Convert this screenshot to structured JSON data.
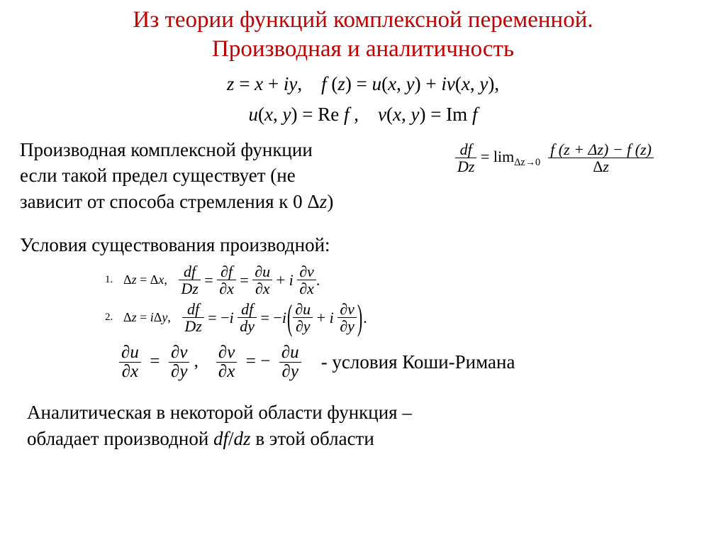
{
  "colors": {
    "title": "#c00000",
    "text": "#000000",
    "background": "#ffffff"
  },
  "fonts": {
    "body_family": "Times New Roman",
    "title_size_pt": 25,
    "body_size_pt": 20,
    "math_small_pt": 16
  },
  "title": {
    "line1": "Из теории функций комплексной переменной.",
    "line2": "Производная и аналитичность"
  },
  "defs": {
    "line1": "z = x + iy,  f (z) = u(x, y) + iv(x, y),",
    "line2": "u(x, y) = Re f ,  v(x, y) = Im f"
  },
  "deriv_para": {
    "l1": "Производная комплексной функции",
    "l2": "если такой предел существует (не",
    "l3": "зависит от способа стремления к 0 Δz)"
  },
  "limit": {
    "lhs_num": "df",
    "lhs_den": "Dz",
    "eq": " = lim",
    "sub": "Δz→0",
    "rhs_num": "f (z + Δz) − f (z)",
    "rhs_den": "Δz"
  },
  "cond_header": "Условия существования производной:",
  "cond1": {
    "num": "1.",
    "dz": "Δz = Δx,",
    "t1_num": "df",
    "t1_den": "Dz",
    "t2_num": "∂f",
    "t2_den": "∂x",
    "t3_num": "∂u",
    "t3_den": "∂x",
    "t4_num": "∂v",
    "t4_den": "∂x",
    "tail": "."
  },
  "cond2": {
    "num": "2.",
    "dz": "Δz = iΔy,",
    "t1_num": "df",
    "t1_den": "Dz",
    "mid": " = −i ",
    "t2_num": "df",
    "t2_den": "dy",
    "eq2": " = −i",
    "p1_num": "∂u",
    "p1_den": "∂y",
    "plus": " + i ",
    "p2_num": "∂v",
    "p2_den": "∂y",
    "tail": "."
  },
  "cr": {
    "a_num": "∂u",
    "a_den": "∂x",
    "b_num": "∂v",
    "b_den": "∂y",
    "c_num": "∂v",
    "c_den": "∂x",
    "d_num": "∂u",
    "d_den": "∂y",
    "label": "- условия Коши-Римана"
  },
  "bottom": {
    "l1": "Аналитическая в некоторой области функция –",
    "l2_a": "обладает производной ",
    "l2_b": "df",
    "l2_c": "/",
    "l2_d": "dz",
    "l2_e": " в этой области"
  }
}
